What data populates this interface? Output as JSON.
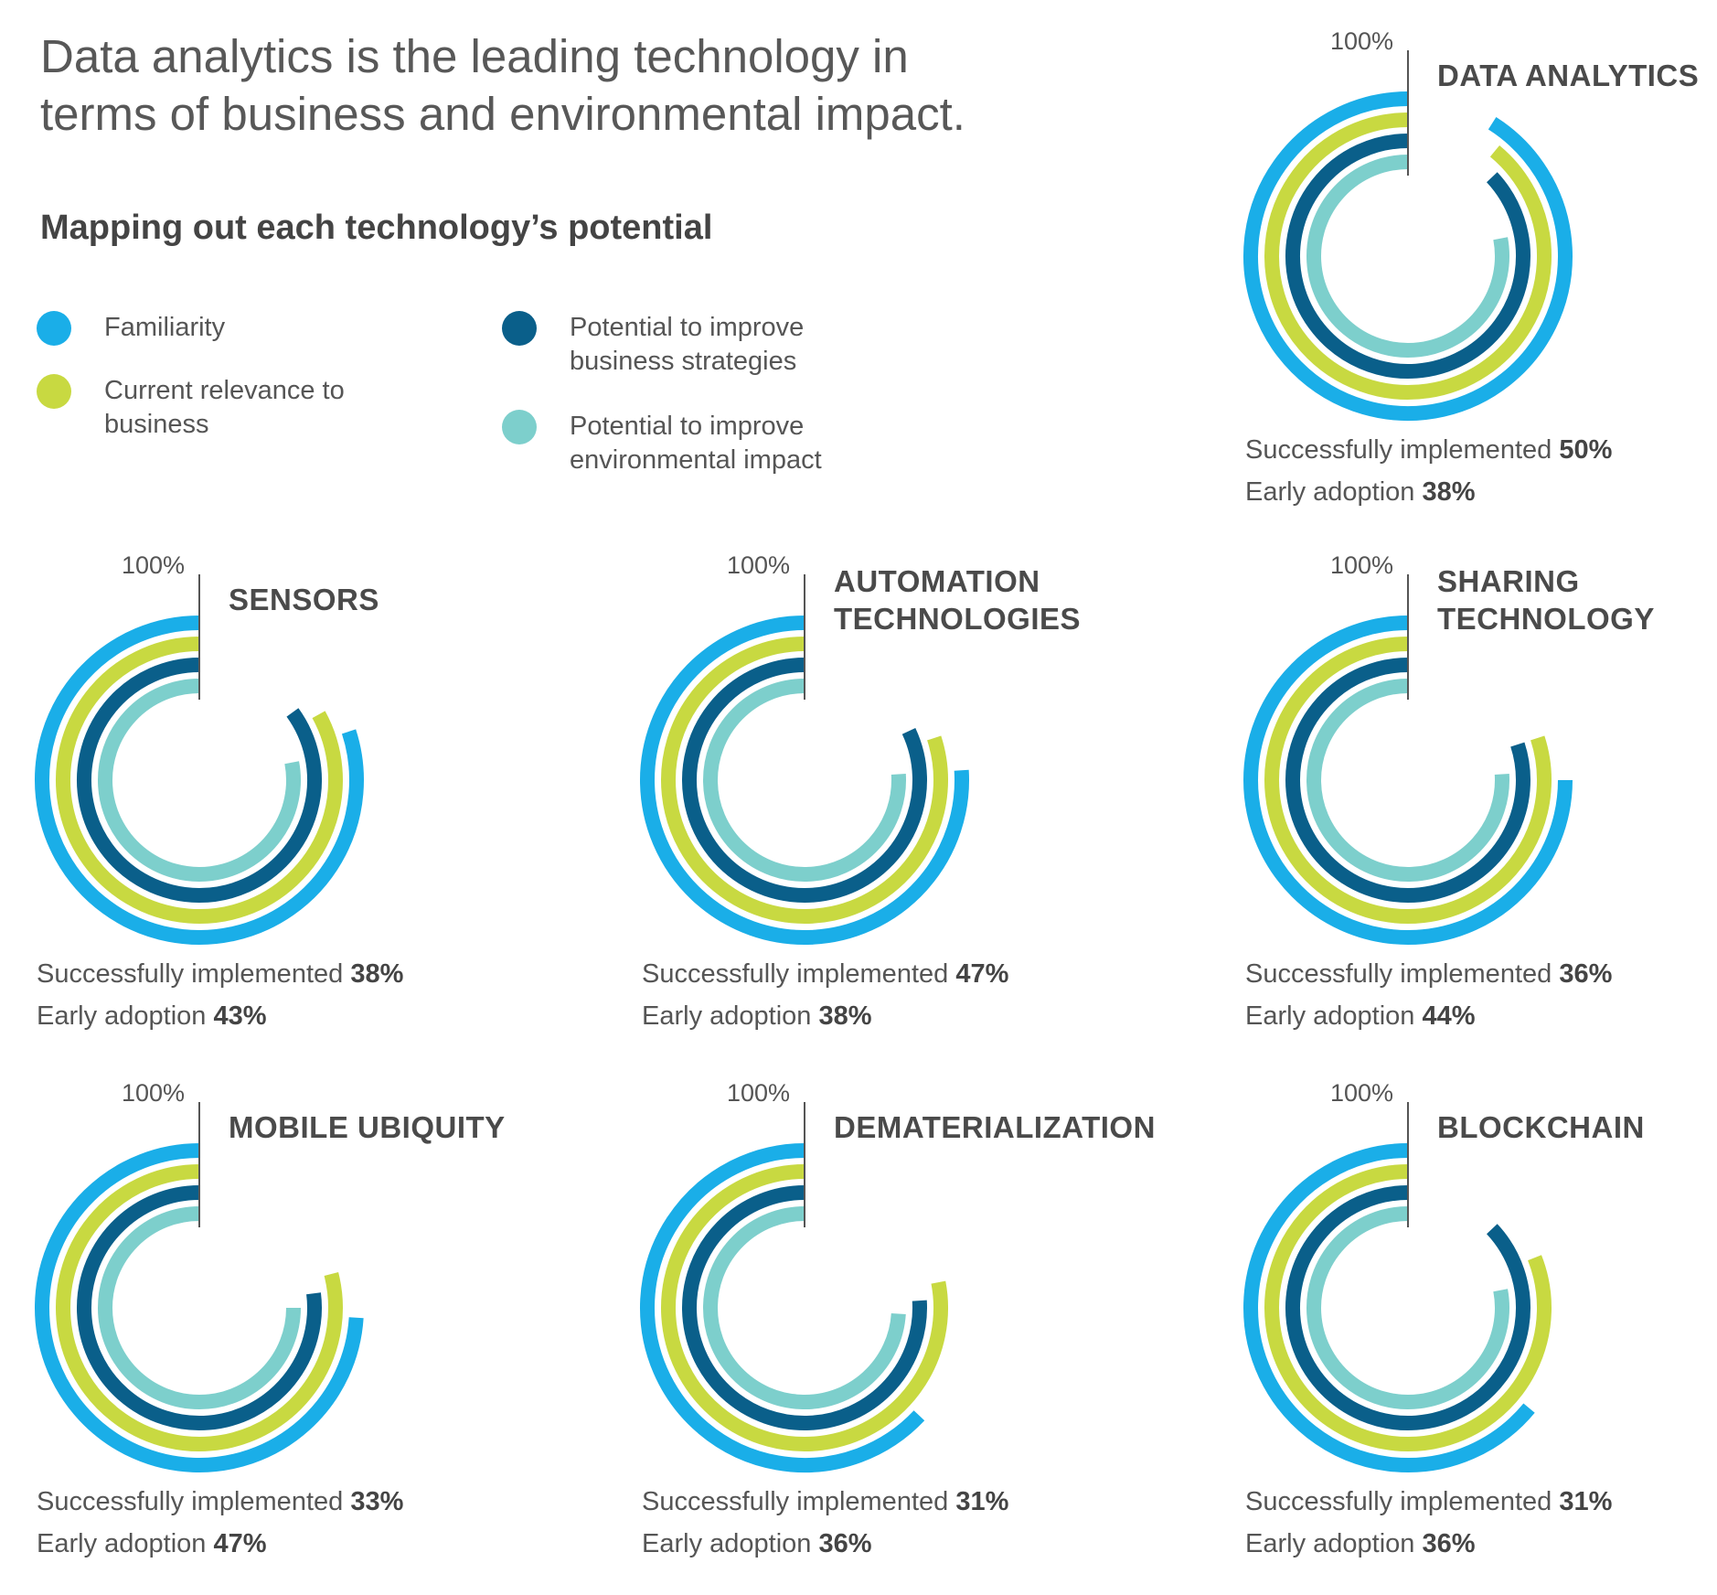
{
  "page": {
    "headline_line1": "Data analytics is the leading technology in",
    "headline_line2": "terms of business and environmental impact.",
    "subtitle": "Mapping out each technology’s potential"
  },
  "legend": [
    {
      "label": "Familiarity",
      "color": "#1aaee8"
    },
    {
      "label": "Current relevance to\nbusiness",
      "color": "#c8d941"
    },
    {
      "label": "Potential to improve\nbusiness strategies",
      "color": "#0a5f8a"
    },
    {
      "label": "Potential to improve\nenvironmental impact",
      "color": "#7dcfcc"
    }
  ],
  "chart_data": [
    {
      "type": "radial_bar",
      "title": "DATA ANALYTICS",
      "scale_max_label": "100%",
      "series": [
        {
          "name": "Familiarity",
          "value": 91
        },
        {
          "name": "Current relevance to business",
          "value": 89
        },
        {
          "name": "Potential to improve business strategies",
          "value": 87
        },
        {
          "name": "Potential to improve environmental impact",
          "value": 78
        }
      ],
      "implemented_label": "Successfully implemented",
      "implemented_value": "50%",
      "adoption_label": "Early adoption",
      "adoption_value": "38%"
    },
    {
      "type": "radial_bar",
      "title": "SENSORS",
      "scale_max_label": "100%",
      "series": [
        {
          "name": "Familiarity",
          "value": 80
        },
        {
          "name": "Current relevance to business",
          "value": 83
        },
        {
          "name": "Potential to improve business strategies",
          "value": 85
        },
        {
          "name": "Potential to improve environmental impact",
          "value": 78
        }
      ],
      "implemented_label": "Successfully implemented",
      "implemented_value": "38%",
      "adoption_label": "Early adoption",
      "adoption_value": "43%"
    },
    {
      "type": "radial_bar",
      "title": "AUTOMATION\nTECHNOLOGIES",
      "scale_max_label": "100%",
      "series": [
        {
          "name": "Familiarity",
          "value": 76
        },
        {
          "name": "Current relevance to business",
          "value": 80
        },
        {
          "name": "Potential to improve business strategies",
          "value": 82
        },
        {
          "name": "Potential to improve environmental impact",
          "value": 76
        }
      ],
      "implemented_label": "Successfully implemented",
      "implemented_value": "47%",
      "adoption_label": "Early adoption",
      "adoption_value": "38%"
    },
    {
      "type": "radial_bar",
      "title": "SHARING\nTECHNOLOGY",
      "scale_max_label": "100%",
      "series": [
        {
          "name": "Familiarity",
          "value": 75
        },
        {
          "name": "Current relevance to business",
          "value": 80
        },
        {
          "name": "Potential to improve business strategies",
          "value": 80
        },
        {
          "name": "Potential to improve environmental impact",
          "value": 76
        }
      ],
      "implemented_label": "Successfully implemented",
      "implemented_value": "36%",
      "adoption_label": "Early adoption",
      "adoption_value": "44%"
    },
    {
      "type": "radial_bar",
      "title": "MOBILE UBIQUITY",
      "scale_max_label": "100%",
      "series": [
        {
          "name": "Familiarity",
          "value": 74
        },
        {
          "name": "Current relevance to business",
          "value": 79
        },
        {
          "name": "Potential to improve business strategies",
          "value": 77
        },
        {
          "name": "Potential to improve environmental impact",
          "value": 75
        }
      ],
      "implemented_label": "Successfully implemented",
      "implemented_value": "33%",
      "adoption_label": "Early adoption",
      "adoption_value": "47%"
    },
    {
      "type": "radial_bar",
      "title": "DEMATERIALIZATION",
      "scale_max_label": "100%",
      "series": [
        {
          "name": "Familiarity",
          "value": 63
        },
        {
          "name": "Current relevance to business",
          "value": 78
        },
        {
          "name": "Potential to improve business strategies",
          "value": 76
        },
        {
          "name": "Potential to improve environmental impact",
          "value": 74
        }
      ],
      "implemented_label": "Successfully implemented",
      "implemented_value": "31%",
      "adoption_label": "Early adoption",
      "adoption_value": "36%"
    },
    {
      "type": "radial_bar",
      "title": "BLOCKCHAIN",
      "scale_max_label": "100%",
      "series": [
        {
          "name": "Familiarity",
          "value": 64
        },
        {
          "name": "Current relevance to business",
          "value": 81
        },
        {
          "name": "Potential to improve business strategies",
          "value": 87
        },
        {
          "name": "Potential to improve environmental impact",
          "value": 78
        }
      ],
      "implemented_label": "Successfully implemented",
      "implemented_value": "31%",
      "adoption_label": "Early adoption",
      "adoption_value": "36%"
    }
  ]
}
